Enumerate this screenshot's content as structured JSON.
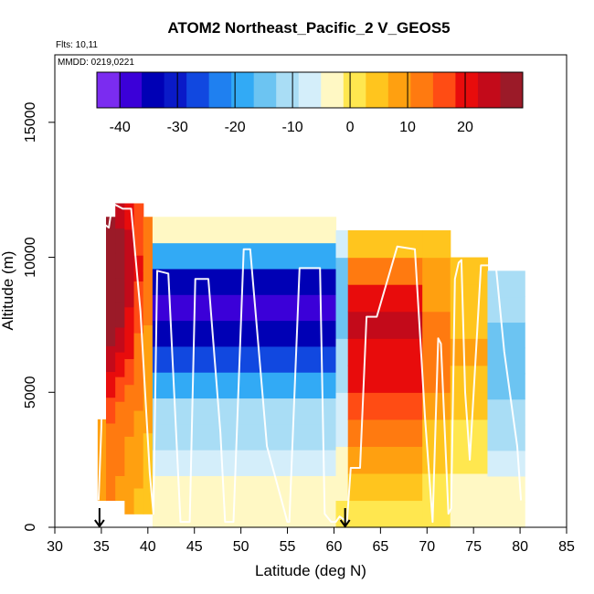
{
  "chart_data": {
    "type": "heatmap",
    "title": "ATOM2 Northeast_Pacific_2 V_GEOS5",
    "subtitle_flights": "Flts: 10,11",
    "subtitle_dates": "MMDD: 0219,0221",
    "xlabel": "Latitude (deg N)",
    "ylabel": "Altitude (m)",
    "xlim": [
      30,
      85
    ],
    "ylim": [
      0,
      17500
    ],
    "x_ticks": [
      30,
      35,
      40,
      45,
      50,
      55,
      60,
      65,
      70,
      75,
      80,
      85
    ],
    "x_tick_labels": [
      "30",
      "35",
      "40",
      "45",
      "50",
      "55",
      "60",
      "65",
      "70",
      "75",
      "80",
      "85"
    ],
    "y_ticks": [
      0,
      5000,
      10000,
      15000
    ],
    "y_tick_labels": [
      "0",
      "5000",
      "10000",
      "15000"
    ],
    "colorbar": {
      "range": [
        -44,
        30
      ],
      "ticks": [
        -40,
        -30,
        -20,
        -10,
        0,
        10,
        20
      ],
      "tick_labels": [
        "-40",
        "-30",
        "-20",
        "-10",
        "0",
        "10",
        "20"
      ],
      "colors": [
        "#7b2cf0",
        "#3b00d8",
        "#0000b5",
        "#0a1ac8",
        "#1148e0",
        "#1f80f0",
        "#32aaf5",
        "#6cc4f2",
        "#a9ddf5",
        "#d4eefa",
        "#fff8c4",
        "#ffe74f",
        "#ffc51e",
        "#ffa010",
        "#ff7a10",
        "#ff4c14",
        "#e80c0c",
        "#c30a1a",
        "#9b1a28"
      ]
    },
    "segments": [
      {
        "x0": 34.6,
        "x1": 35.5,
        "ybot": 1000,
        "ytop": 4000,
        "values": [
          9
        ]
      },
      {
        "x0": 35.5,
        "x1": 36.5,
        "ybot": 1000,
        "ytop": 11500,
        "values": [
          12,
          12,
          14,
          16,
          20,
          25,
          28,
          28,
          28,
          28,
          28
        ]
      },
      {
        "x0": 36.5,
        "x1": 37.5,
        "ybot": 1000,
        "ytop": 12000,
        "values": [
          10,
          11,
          12,
          14,
          17,
          21,
          25,
          27,
          28,
          28,
          27,
          26
        ]
      },
      {
        "x0": 37.5,
        "x1": 38.5,
        "ybot": 500,
        "ytop": 12000,
        "values": [
          8,
          9,
          10,
          12,
          14,
          16,
          19,
          22,
          24,
          25,
          24,
          22
        ]
      },
      {
        "x0": 38.5,
        "x1": 39.5,
        "ybot": 500,
        "ytop": 12000,
        "values": [
          6,
          7,
          8,
          9,
          11,
          12,
          14,
          16,
          18,
          19,
          18,
          16
        ]
      },
      {
        "x0": 39.5,
        "x1": 40.5,
        "ybot": 500,
        "ytop": 11500,
        "values": [
          4,
          5,
          6,
          7,
          8,
          9,
          10,
          11,
          12,
          12,
          11
        ]
      },
      {
        "x0": 40.5,
        "x1": 60.2,
        "ybot": 0,
        "ytop": 11500,
        "values": [
          -3,
          -5,
          -7,
          -9,
          -12,
          -18,
          -28,
          -35,
          -38,
          -36,
          -20,
          -3
        ]
      },
      {
        "x0": 60.2,
        "x1": 61.5,
        "ybot": 0,
        "ytop": 11000,
        "values": [
          0,
          -2,
          -4,
          -6,
          -8,
          -10,
          -12,
          -14,
          -16,
          -15,
          -8
        ]
      },
      {
        "x0": 61.5,
        "x1": 69.5,
        "ybot": 0,
        "ytop": 11000,
        "values": [
          1,
          4,
          8,
          12,
          16,
          19,
          21,
          23,
          20,
          12,
          6
        ]
      },
      {
        "x0": 69.5,
        "x1": 72.5,
        "ybot": 0,
        "ytop": 11000,
        "values": [
          0,
          2,
          4,
          6,
          9,
          11,
          13,
          12,
          10,
          8,
          4
        ]
      },
      {
        "x0": 72.5,
        "x1": 76.5,
        "ybot": 0,
        "ytop": 10000,
        "values": [
          -2,
          -2,
          0,
          2,
          4,
          6,
          7,
          6,
          5,
          3
        ]
      },
      {
        "x0": 76.5,
        "x1": 80.5,
        "ybot": 0,
        "ytop": 9500,
        "values": [
          -3,
          -5,
          -8,
          -10,
          -12,
          -14,
          -15,
          -14,
          -12,
          -10
        ]
      }
    ],
    "flight_track": {
      "x": [
        34.7,
        35.0,
        35.4,
        35.8,
        36.2,
        37.3,
        38.2,
        39.2,
        40.2,
        40.6,
        41.0,
        42.2,
        43.5,
        44.5,
        45.1,
        46.5,
        47.8,
        48.3,
        49.2,
        50.3,
        51.0,
        52.8,
        55.0,
        55.2,
        56.3,
        58.5,
        59.0,
        59.7,
        60.2,
        60.6,
        61.4,
        61.8,
        62.8,
        63.5,
        64.6,
        66.8,
        68.7,
        69.8,
        70.6,
        71.2,
        71.5,
        72.3,
        72.6,
        73.0,
        73.4,
        73.7,
        74.1,
        74.6,
        75.8,
        77.4,
        78.3,
        79.1,
        79.7,
        80.1
      ],
      "y": [
        1000,
        3700,
        11200,
        11100,
        12000,
        11800,
        11800,
        8000,
        2000,
        500,
        9500,
        9400,
        200,
        200,
        9200,
        9200,
        3500,
        200,
        200,
        10300,
        10300,
        3000,
        200,
        200,
        9600,
        9600,
        500,
        200,
        200,
        400,
        200,
        2200,
        2200,
        7800,
        7800,
        10400,
        10300,
        4000,
        200,
        7000,
        6800,
        500,
        700,
        9200,
        9800,
        9900,
        5000,
        2500,
        9700,
        9700,
        6500,
        4500,
        3000,
        1000
      ]
    },
    "flight_markers": [
      34.8,
      61.2
    ],
    "fill_note": "white vertical profile line and black arrows at flight start/end"
  }
}
